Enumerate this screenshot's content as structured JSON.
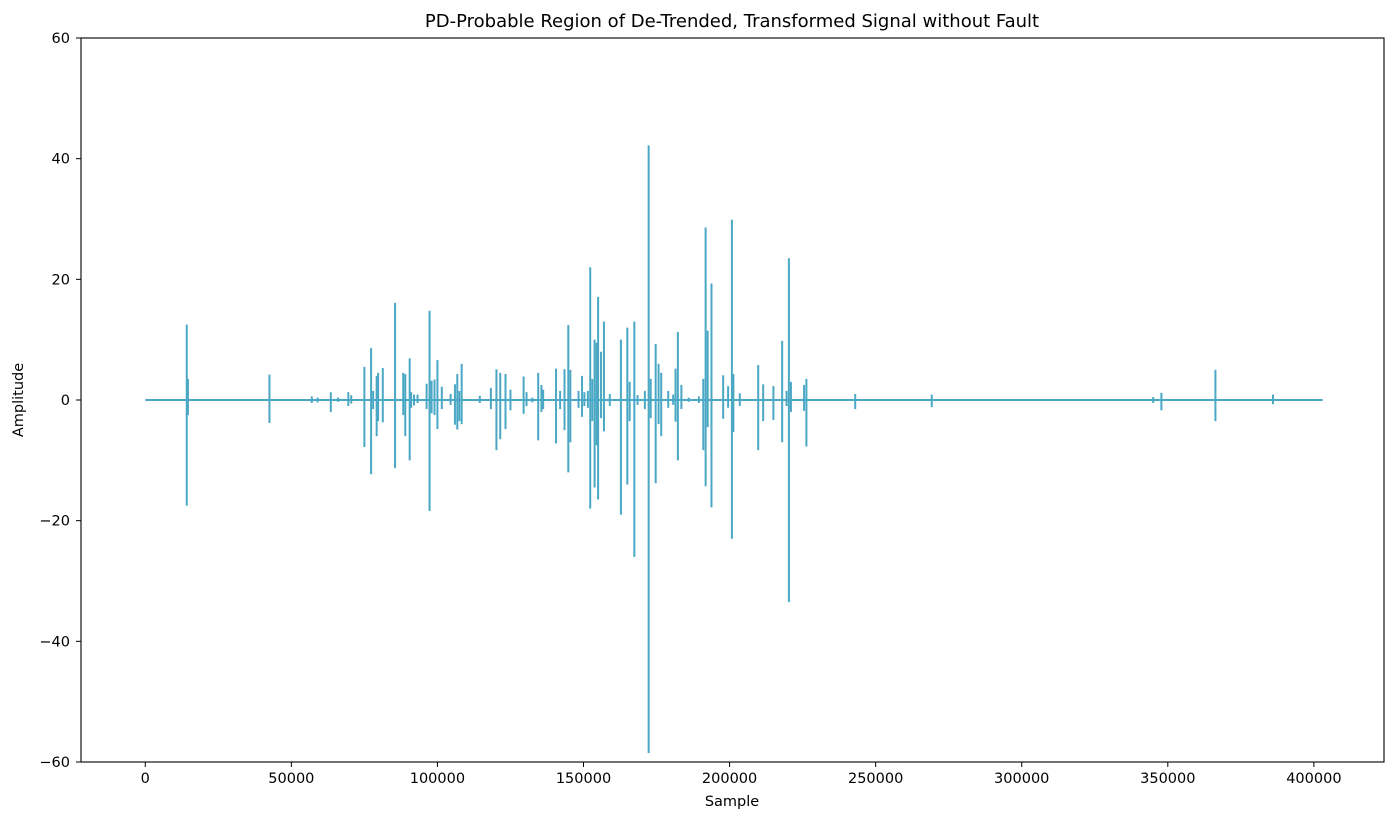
{
  "chart_data": {
    "type": "line",
    "title": "PD-Probable Region of De-Trended, Transformed Signal without Fault",
    "xlabel": "Sample",
    "ylabel": "Amplitude",
    "xlim": [
      -22000,
      424000
    ],
    "ylim": [
      -60,
      60
    ],
    "xticks": [
      0,
      50000,
      100000,
      150000,
      200000,
      250000,
      300000,
      350000,
      400000
    ],
    "xtick_labels": [
      "0",
      "50000",
      "100000",
      "150000",
      "200000",
      "250000",
      "300000",
      "350000",
      "400000"
    ],
    "yticks": [
      -60,
      -40,
      -20,
      0,
      20,
      40,
      60
    ],
    "ytick_labels": [
      "−60",
      "−40",
      "−20",
      "0",
      "20",
      "40",
      "60"
    ],
    "grid": false,
    "line_color": "#4aa8c4",
    "x_range": [
      0,
      403000
    ],
    "series": [
      {
        "spikes": [
          [
            14200,
            12.5,
            -17.5
          ],
          [
            14600,
            3.5,
            -2.5
          ],
          [
            42500,
            4.2,
            -3.8
          ],
          [
            57000,
            0.6,
            -0.5
          ],
          [
            59000,
            0.4,
            -0.4
          ],
          [
            63500,
            1.3,
            -2.0
          ],
          [
            66000,
            0.4,
            -0.3
          ],
          [
            69500,
            1.3,
            -1.0
          ],
          [
            70500,
            0.8,
            -0.6
          ],
          [
            75000,
            5.5,
            -7.8
          ],
          [
            77300,
            8.6,
            -12.3
          ],
          [
            78000,
            1.5,
            -1.5
          ],
          [
            79200,
            4.0,
            -6.0
          ],
          [
            79700,
            4.5,
            -3.5
          ],
          [
            81300,
            5.3,
            -3.7
          ],
          [
            85500,
            16.1,
            -11.3
          ],
          [
            88300,
            4.5,
            -2.5
          ],
          [
            89000,
            4.3,
            -6.0
          ],
          [
            90500,
            6.9,
            -10.0
          ],
          [
            91000,
            1.3,
            -1.3
          ],
          [
            92000,
            0.9,
            -0.9
          ],
          [
            93200,
            0.9,
            -0.5
          ],
          [
            96300,
            2.7,
            -1.5
          ],
          [
            97300,
            14.8,
            -18.4
          ],
          [
            98000,
            3.2,
            -2.2
          ],
          [
            99000,
            3.4,
            -2.5
          ],
          [
            100000,
            6.6,
            -4.8
          ],
          [
            101500,
            2.2,
            -1.5
          ],
          [
            104500,
            1.0,
            -0.8
          ],
          [
            106000,
            2.6,
            -4.1
          ],
          [
            106800,
            4.3,
            -4.9
          ],
          [
            107500,
            1.5,
            -3.5
          ],
          [
            108300,
            6.0,
            -4.0
          ],
          [
            114500,
            0.7,
            -0.5
          ],
          [
            118300,
            2.0,
            -1.5
          ],
          [
            120200,
            5.1,
            -8.3
          ],
          [
            121500,
            4.5,
            -6.5
          ],
          [
            123300,
            4.3,
            -4.8
          ],
          [
            125000,
            1.7,
            -1.7
          ],
          [
            129500,
            3.9,
            -2.3
          ],
          [
            130500,
            1.3,
            -1.0
          ],
          [
            132500,
            0.4,
            -0.4
          ],
          [
            134500,
            4.5,
            -6.7
          ],
          [
            135600,
            2.5,
            -2.0
          ],
          [
            136200,
            1.7,
            -1.5
          ],
          [
            140600,
            5.2,
            -7.2
          ],
          [
            142000,
            1.5,
            -1.5
          ],
          [
            143500,
            5.1,
            -5.0
          ],
          [
            144800,
            12.4,
            -12.0
          ],
          [
            145500,
            5.0,
            -7.0
          ],
          [
            148300,
            1.5,
            -1.3
          ],
          [
            149500,
            4.0,
            -2.8
          ],
          [
            150300,
            1.3,
            -1.0
          ],
          [
            151500,
            1.5,
            -1.3
          ],
          [
            152300,
            22.0,
            -18.0
          ],
          [
            153000,
            3.5,
            -3.5
          ],
          [
            153800,
            10.0,
            -14.5
          ],
          [
            154500,
            9.5,
            -7.5
          ],
          [
            155000,
            17.1,
            -16.5
          ],
          [
            156000,
            8.0,
            -3.0
          ],
          [
            157000,
            13.0,
            -5.2
          ],
          [
            159000,
            1.0,
            -1.0
          ],
          [
            162800,
            10.0,
            -19.0
          ],
          [
            165000,
            12.0,
            -14.0
          ],
          [
            165800,
            3.0,
            -3.5
          ],
          [
            167400,
            13.0,
            -26.0
          ],
          [
            168500,
            0.8,
            -0.8
          ],
          [
            171000,
            1.5,
            -1.5
          ],
          [
            172300,
            42.2,
            -58.5
          ],
          [
            173000,
            3.5,
            -3.0
          ],
          [
            174700,
            9.3,
            -13.8
          ],
          [
            175700,
            6.0,
            -4.0
          ],
          [
            176600,
            4.5,
            -6.0
          ],
          [
            179000,
            1.5,
            -1.3
          ],
          [
            180700,
            0.9,
            -0.8
          ],
          [
            181500,
            5.2,
            -3.6
          ],
          [
            182300,
            11.3,
            -10.0
          ],
          [
            183500,
            2.5,
            -1.5
          ],
          [
            186000,
            0.4,
            -0.3
          ],
          [
            189500,
            0.6,
            -0.5
          ],
          [
            191000,
            3.5,
            -8.3
          ],
          [
            191800,
            28.6,
            -14.3
          ],
          [
            192500,
            11.5,
            -4.5
          ],
          [
            193800,
            19.3,
            -17.8
          ],
          [
            197800,
            4.1,
            -3.1
          ],
          [
            199500,
            2.3,
            -1.3
          ],
          [
            200800,
            29.9,
            -23.0
          ],
          [
            201300,
            4.3,
            -5.3
          ],
          [
            203500,
            1.1,
            -1.0
          ],
          [
            209800,
            5.8,
            -8.3
          ],
          [
            211500,
            2.6,
            -3.5
          ],
          [
            215000,
            2.3,
            -3.3
          ],
          [
            218000,
            9.8,
            -7.0
          ],
          [
            219500,
            1.5,
            -1.0
          ],
          [
            220300,
            23.5,
            -33.5
          ],
          [
            221000,
            3.0,
            -2.0
          ],
          [
            225500,
            2.5,
            -1.8
          ],
          [
            226300,
            3.5,
            -7.7
          ],
          [
            243000,
            1.0,
            -1.5
          ],
          [
            269200,
            0.9,
            -1.2
          ],
          [
            345000,
            0.5,
            -0.5
          ],
          [
            347800,
            1.2,
            -1.7
          ],
          [
            366300,
            5.0,
            -3.5
          ],
          [
            386000,
            0.9,
            -0.7
          ]
        ]
      }
    ]
  }
}
